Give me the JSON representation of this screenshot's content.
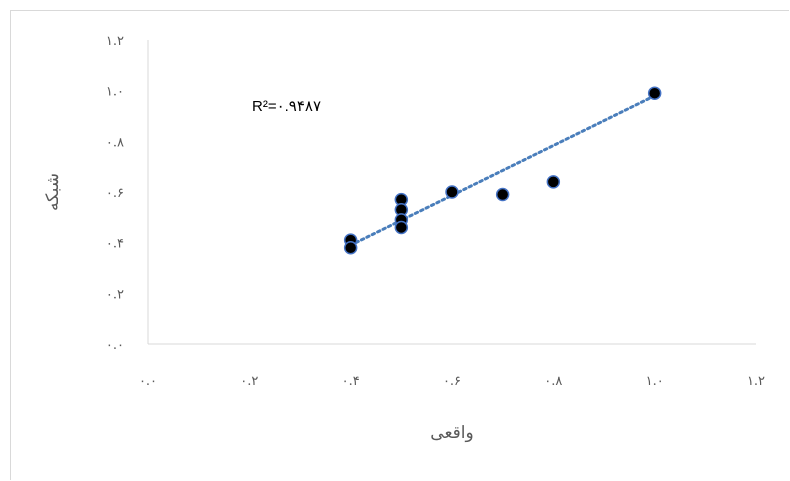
{
  "chart_data": {
    "type": "scatter",
    "xlabel": "واقعی",
    "ylabel": "شبکه",
    "xlim": [
      0,
      1.2
    ],
    "ylim": [
      0,
      1.2
    ],
    "x_ticks": [
      {
        "value": 0.0,
        "label": "۰.۰"
      },
      {
        "value": 0.2,
        "label": "۰.۲"
      },
      {
        "value": 0.4,
        "label": "۰.۴"
      },
      {
        "value": 0.6,
        "label": "۰.۶"
      },
      {
        "value": 0.8,
        "label": "۰.۸"
      },
      {
        "value": 1.0,
        "label": "۱.۰"
      },
      {
        "value": 1.2,
        "label": "۱.۲"
      }
    ],
    "y_ticks": [
      {
        "value": 0.0,
        "label": "۰.۰"
      },
      {
        "value": 0.2,
        "label": "۰.۲"
      },
      {
        "value": 0.4,
        "label": "۰.۴"
      },
      {
        "value": 0.6,
        "label": "۰.۶"
      },
      {
        "value": 0.8,
        "label": "۰.۸"
      },
      {
        "value": 1.0,
        "label": "۱.۰"
      },
      {
        "value": 1.2,
        "label": "۱.۲"
      }
    ],
    "points": [
      {
        "x": 0.4,
        "y": 0.41
      },
      {
        "x": 0.4,
        "y": 0.38
      },
      {
        "x": 0.5,
        "y": 0.57
      },
      {
        "x": 0.5,
        "y": 0.53
      },
      {
        "x": 0.5,
        "y": 0.49
      },
      {
        "x": 0.5,
        "y": 0.46
      },
      {
        "x": 0.6,
        "y": 0.6
      },
      {
        "x": 0.7,
        "y": 0.59
      },
      {
        "x": 0.8,
        "y": 0.64
      },
      {
        "x": 1.0,
        "y": 0.99
      }
    ],
    "trendline": {
      "x": [
        0.4,
        1.0
      ],
      "y": [
        0.39,
        0.98
      ],
      "style": "dotted"
    },
    "annotation": "R²=۰.۹۴۸۷",
    "grid": false,
    "colors": {
      "marker_fill": "#000000",
      "marker_stroke": "#4472c4",
      "trendline": "#4a7ebb",
      "axis": "#d9d9d9",
      "text": "#595959"
    }
  }
}
